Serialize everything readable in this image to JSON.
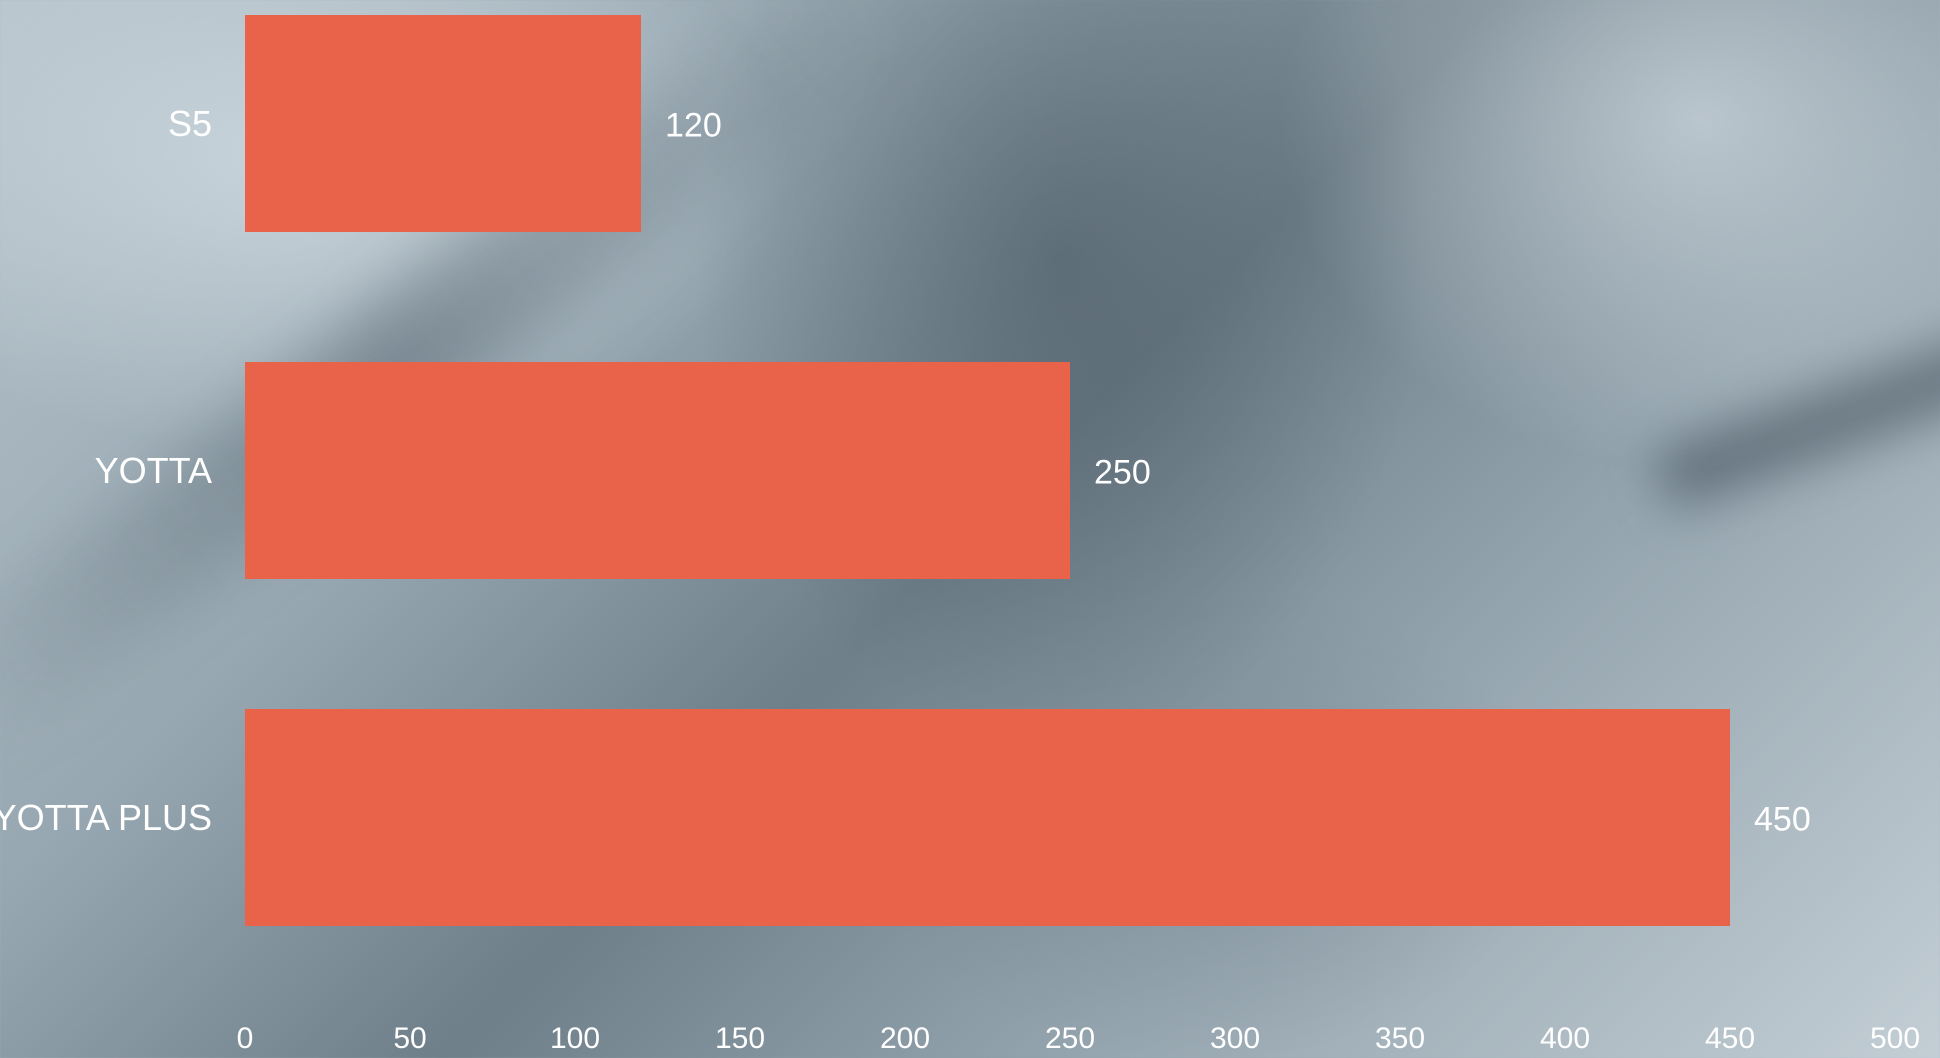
{
  "chart_data": {
    "type": "bar",
    "orientation": "horizontal",
    "categories": [
      "S5",
      "YOTTA",
      "YOTTA PLUS"
    ],
    "values": [
      120,
      250,
      450
    ],
    "xlim": [
      0,
      500
    ],
    "xticks": [
      "0",
      "50",
      "100",
      "150",
      "200",
      "250",
      "300",
      "350",
      "400",
      "450",
      "500"
    ],
    "bar_color": "#E8634A",
    "data_labels": true,
    "grid": false,
    "legend": "none"
  }
}
